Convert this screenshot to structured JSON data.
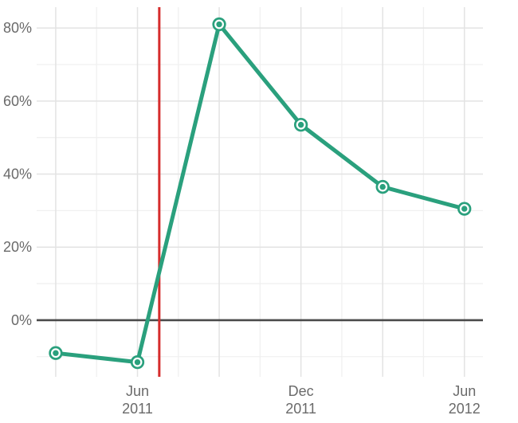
{
  "chart_data": {
    "type": "line",
    "title": "",
    "xlabel": "",
    "ylabel": "",
    "points": [
      {
        "x_label": "Mar 2011",
        "month_index": 0,
        "value": -9
      },
      {
        "x_label": "Jun 2011",
        "month_index": 3,
        "value": -11.5
      },
      {
        "x_label": "Sep 2011",
        "month_index": 6,
        "value": 81
      },
      {
        "x_label": "Dec 2011",
        "month_index": 9,
        "value": 53.5
      },
      {
        "x_label": "Mar 2012",
        "month_index": 12,
        "value": 36.5
      },
      {
        "x_label": "Jun 2012",
        "month_index": 15,
        "value": 30.5
      }
    ],
    "x_axis": {
      "domain_month_index": [
        -0.7,
        15.68
      ],
      "major_grid_month_indices": [
        0,
        3,
        6,
        9,
        12,
        15
      ],
      "minor_grid_month_indices": [
        1.5,
        4.5,
        7.5,
        10.5,
        13.5
      ],
      "ticks": [
        {
          "month_index": 3,
          "line1": "Jun",
          "line2": "2011"
        },
        {
          "month_index": 9,
          "line1": "Dec",
          "line2": "2011"
        },
        {
          "month_index": 15,
          "line1": "Jun",
          "line2": "2012"
        }
      ]
    },
    "y_axis": {
      "domain": [
        -15.5,
        85.7
      ],
      "ticks": [
        {
          "value": 0,
          "label": "0%"
        },
        {
          "value": 20,
          "label": "20%"
        },
        {
          "value": 40,
          "label": "40%"
        },
        {
          "value": 60,
          "label": "60%"
        },
        {
          "value": 80,
          "label": "80%"
        }
      ],
      "minor_grid_values": [
        -10,
        10,
        30,
        50,
        70
      ]
    },
    "annotations": {
      "vline_month_index": 3.8,
      "zero_baseline_value": 0
    },
    "legend": null,
    "grid_on": true,
    "colors": {
      "series": "#2aa07d",
      "vline": "#d62c2c",
      "zero_line": "#4a4a4a",
      "grid_major": "#e3e3e3",
      "grid_minor": "#f0f0f0",
      "tick_label": "#6a6a6a",
      "background": "#ffffff",
      "marker_fill": "#ffffff"
    }
  }
}
